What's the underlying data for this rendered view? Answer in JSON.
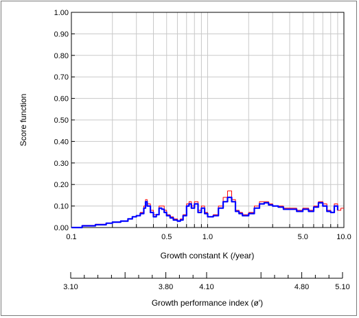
{
  "chart_data": {
    "type": "line",
    "ylabel": "Score function",
    "xlabel": "Growth constant K (/year)",
    "x_scale": "log",
    "xlim": [
      0.1,
      10.0
    ],
    "ylim": [
      0.0,
      1.0
    ],
    "y_ticks": [
      "0.00",
      "0.10",
      "0.20",
      "0.30",
      "0.40",
      "0.50",
      "0.60",
      "0.70",
      "0.80",
      "0.90",
      "1.00"
    ],
    "x_tick_labels": [
      {
        "value": 0.1,
        "label": "0.1"
      },
      {
        "value": 0.5,
        "label": "0.5"
      },
      {
        "value": 1.0,
        "label": "1.0"
      },
      {
        "value": 5.0,
        "label": "5.0"
      },
      {
        "value": 10.0,
        "label": "10.0"
      }
    ],
    "grid": true,
    "series": [
      {
        "color": "#ff0000",
        "x": [
          0.1,
          0.12,
          0.15,
          0.18,
          0.2,
          0.23,
          0.26,
          0.28,
          0.3,
          0.32,
          0.34,
          0.35,
          0.36,
          0.38,
          0.4,
          0.42,
          0.44,
          0.46,
          0.48,
          0.5,
          0.53,
          0.56,
          0.6,
          0.63,
          0.66,
          0.7,
          0.73,
          0.76,
          0.8,
          0.85,
          0.9,
          0.95,
          1.0,
          1.1,
          1.2,
          1.3,
          1.4,
          1.5,
          1.6,
          1.7,
          1.8,
          2.0,
          2.2,
          2.4,
          2.6,
          2.8,
          3.0,
          3.3,
          3.6,
          4.0,
          4.5,
          5.0,
          5.5,
          6.0,
          6.5,
          7.0,
          7.5,
          8.0,
          8.5,
          9.0,
          9.5,
          10.0
        ],
        "y": [
          0.0,
          0.01,
          0.015,
          0.02,
          0.025,
          0.03,
          0.04,
          0.05,
          0.055,
          0.07,
          0.1,
          0.13,
          0.11,
          0.08,
          0.06,
          0.06,
          0.1,
          0.1,
          0.08,
          0.06,
          0.05,
          0.04,
          0.03,
          0.04,
          0.06,
          0.11,
          0.12,
          0.1,
          0.12,
          0.08,
          0.1,
          0.07,
          0.05,
          0.06,
          0.1,
          0.14,
          0.17,
          0.13,
          0.08,
          0.07,
          0.06,
          0.07,
          0.1,
          0.12,
          0.12,
          0.11,
          0.1,
          0.1,
          0.09,
          0.09,
          0.08,
          0.09,
          0.08,
          0.1,
          0.12,
          0.11,
          0.08,
          0.07,
          0.11,
          0.08,
          0.09,
          0.09
        ]
      },
      {
        "color": "#0000ff",
        "x": [
          0.1,
          0.12,
          0.15,
          0.18,
          0.2,
          0.23,
          0.26,
          0.28,
          0.3,
          0.32,
          0.34,
          0.35,
          0.36,
          0.38,
          0.4,
          0.42,
          0.44,
          0.46,
          0.48,
          0.5,
          0.53,
          0.56,
          0.6,
          0.63,
          0.66,
          0.7,
          0.73,
          0.76,
          0.8,
          0.85,
          0.9,
          0.95,
          1.0,
          1.1,
          1.2,
          1.3,
          1.4,
          1.5,
          1.6,
          1.7,
          1.8,
          2.0,
          2.2,
          2.4,
          2.6,
          2.8,
          3.0,
          3.3,
          3.6,
          4.0,
          4.5,
          5.0,
          5.5,
          6.0,
          6.5,
          7.0,
          7.5,
          8.0,
          8.5,
          9.0
        ],
        "y": [
          0.0,
          0.008,
          0.013,
          0.02,
          0.025,
          0.03,
          0.04,
          0.05,
          0.055,
          0.065,
          0.09,
          0.12,
          0.1,
          0.07,
          0.05,
          0.06,
          0.09,
          0.085,
          0.07,
          0.055,
          0.045,
          0.035,
          0.03,
          0.035,
          0.055,
          0.1,
          0.11,
          0.09,
          0.11,
          0.07,
          0.09,
          0.065,
          0.05,
          0.055,
          0.09,
          0.12,
          0.14,
          0.12,
          0.075,
          0.065,
          0.055,
          0.065,
          0.09,
          0.11,
          0.115,
          0.105,
          0.1,
          0.095,
          0.085,
          0.085,
          0.075,
          0.085,
          0.075,
          0.095,
          0.115,
          0.1,
          0.075,
          0.07,
          0.1,
          0.08
        ]
      }
    ]
  },
  "secondary_axis": {
    "label": "Growth performance index (ø')",
    "min_value": 3.1,
    "max_value": 5.1,
    "major_ticks": [
      3.1,
      3.5,
      3.8,
      4.1,
      4.5,
      4.8,
      5.1
    ],
    "minor_ticks": [
      3.2,
      3.3,
      3.4,
      3.6,
      3.7,
      3.9,
      4.0,
      4.6,
      4.7,
      4.9,
      5.0
    ],
    "tick_labels": [
      {
        "value": 3.1,
        "label": "3.10"
      },
      {
        "value": 3.8,
        "label": "3.80"
      },
      {
        "value": 4.1,
        "label": "4.10"
      },
      {
        "value": 4.8,
        "label": "4.80"
      },
      {
        "value": 5.1,
        "label": "5.10"
      }
    ]
  }
}
